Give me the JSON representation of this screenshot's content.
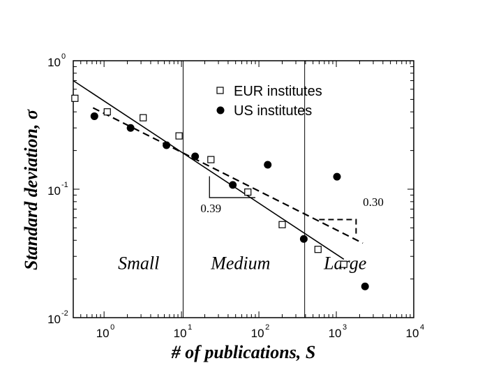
{
  "chart_data": {
    "type": "scatter",
    "xscale": "log",
    "yscale": "log",
    "xlim": [
      0.4,
      10000
    ],
    "ylim": [
      0.01,
      1
    ],
    "xlabel": "# of publications, S",
    "ylabel": "Standard deviation,  σ",
    "xticks": [
      {
        "base": "10",
        "exp": "0",
        "value": 1
      },
      {
        "base": "10",
        "exp": "1",
        "value": 10
      },
      {
        "base": "10",
        "exp": "2",
        "value": 100
      },
      {
        "base": "10",
        "exp": "3",
        "value": 1000
      },
      {
        "base": "10",
        "exp": "4",
        "value": 10000
      }
    ],
    "yticks": [
      {
        "base": "10",
        "exp": "0",
        "value": 1
      },
      {
        "base": "10",
        "exp": "-1",
        "value": 0.1
      },
      {
        "base": "10",
        "exp": "-2",
        "value": 0.01
      }
    ],
    "region_dividers": [
      10.5,
      390
    ],
    "regions": [
      {
        "label": "Small",
        "x": 2.8,
        "y": 0.0238
      },
      {
        "label": "Medium",
        "x": 58,
        "y": 0.0238
      },
      {
        "label": "Large",
        "x": 1300,
        "y": 0.0238
      }
    ],
    "series": [
      {
        "name": "EUR institutes",
        "marker": "open-square",
        "x": [
          0.42,
          1.1,
          3.2,
          9.3,
          24,
          72,
          200,
          580,
          1250
        ],
        "y": [
          0.51,
          0.4,
          0.36,
          0.26,
          0.17,
          0.095,
          0.053,
          0.034,
          0.026
        ]
      },
      {
        "name": "US institutes",
        "marker": "filled-circle",
        "x": [
          0.75,
          2.2,
          6.4,
          15,
          46,
          130,
          380,
          1020,
          2350
        ],
        "y": [
          0.37,
          0.3,
          0.22,
          0.18,
          0.108,
          0.155,
          0.041,
          0.125,
          0.0175
        ]
      }
    ],
    "fits": [
      {
        "style": "solid",
        "x": [
          0.4,
          1250
        ],
        "y": [
          0.7,
          0.0285
        ]
      },
      {
        "style": "dashed",
        "x": [
          0.72,
          2200
        ],
        "y": [
          0.43,
          0.038
        ]
      }
    ],
    "slope_annotations": [
      {
        "label": "0.39",
        "corner": [
          23,
          0.086
        ],
        "x_end": 90,
        "y_top": 0.126,
        "label_at": [
          24,
          0.066
        ]
      },
      {
        "label": "0.30",
        "corner": [
          1800,
          0.058
        ],
        "x_start": 600,
        "y_low": 0.044,
        "label_at": [
          3000,
          0.074
        ]
      }
    ]
  }
}
